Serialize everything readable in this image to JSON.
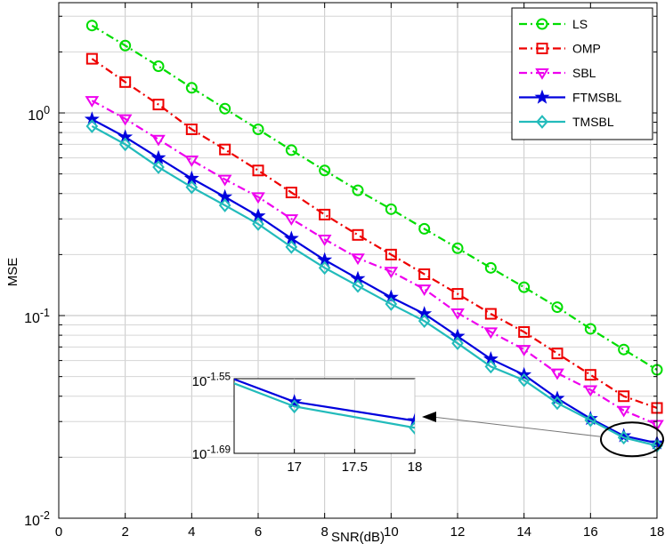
{
  "chart_data": {
    "type": "line",
    "xlabel": "SNR(dB)",
    "ylabel": "MSE",
    "xlim": [
      0,
      18
    ],
    "ylim": [
      0.01,
      3.5
    ],
    "yscale": "log",
    "grid": true,
    "legend_position": "top-right",
    "x_ticks": [
      "0",
      "2",
      "4",
      "6",
      "8",
      "10",
      "12",
      "14",
      "16",
      "18"
    ],
    "y_ticks": [
      {
        "value": 1,
        "base": "10",
        "exp": "0"
      },
      {
        "value": 0.1,
        "base": "10",
        "exp": "-1"
      },
      {
        "value": 0.01,
        "base": "10",
        "exp": "-2"
      }
    ],
    "x": [
      1,
      2,
      3,
      4,
      5,
      6,
      7,
      8,
      9,
      10,
      11,
      12,
      13,
      14,
      15,
      16,
      17,
      18
    ],
    "series": [
      {
        "name": "LS",
        "color": "#00dd00",
        "dash": "dashdot",
        "marker": "circle",
        "values": [
          2.7,
          2.15,
          1.7,
          1.33,
          1.05,
          0.83,
          0.655,
          0.52,
          0.415,
          0.335,
          0.268,
          0.215,
          0.172,
          0.138,
          0.11,
          0.086,
          0.068,
          0.054
        ]
      },
      {
        "name": "OMP",
        "color": "#ee0000",
        "dash": "dashdot",
        "marker": "square",
        "values": [
          1.85,
          1.42,
          1.1,
          0.83,
          0.66,
          0.52,
          0.405,
          0.315,
          0.25,
          0.2,
          0.16,
          0.128,
          0.102,
          0.083,
          0.065,
          0.051,
          0.04,
          0.035
        ]
      },
      {
        "name": "SBL",
        "color": "#ee00ee",
        "dash": "dashdot",
        "marker": "triangle-down",
        "values": [
          1.15,
          0.935,
          0.74,
          0.585,
          0.47,
          0.385,
          0.3,
          0.238,
          0.192,
          0.165,
          0.135,
          0.103,
          0.083,
          0.068,
          0.052,
          0.043,
          0.034,
          0.029
        ]
      },
      {
        "name": "FTMSBL",
        "color": "#0000dd",
        "dash": "solid",
        "marker": "star",
        "values": [
          0.93,
          0.76,
          0.6,
          0.475,
          0.385,
          0.31,
          0.24,
          0.188,
          0.152,
          0.123,
          0.102,
          0.079,
          0.061,
          0.051,
          0.039,
          0.031,
          0.0255,
          0.0235
        ]
      },
      {
        "name": "TMSBL",
        "color": "#22bbbb",
        "dash": "solid",
        "marker": "diamond",
        "values": [
          0.86,
          0.7,
          0.54,
          0.43,
          0.35,
          0.283,
          0.218,
          0.172,
          0.14,
          0.114,
          0.094,
          0.073,
          0.056,
          0.048,
          0.037,
          0.0305,
          0.025,
          0.0228
        ]
      }
    ],
    "inset": {
      "xlim": [
        16.5,
        18
      ],
      "x_ticks": [
        "17",
        "17.5",
        "18"
      ],
      "y_ticks": [
        {
          "base": "10",
          "exp": "-1.55"
        },
        {
          "base": "10",
          "exp": "-1.69"
        }
      ],
      "ylim_exp": [
        -1.69,
        -1.55
      ]
    }
  }
}
